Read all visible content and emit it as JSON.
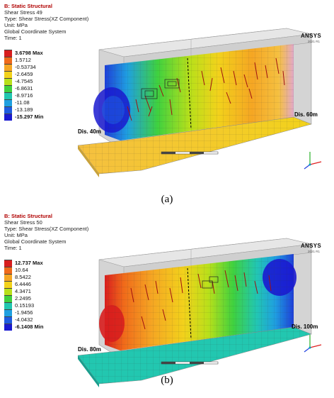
{
  "panel_a": {
    "title": "B: Static Structural",
    "result": "Shear Stress 49",
    "type": "Type: Shear Stress(XZ Component)",
    "unit": "Unit: MPa",
    "coord": "Global Coordinate System",
    "time": "Time: 1",
    "legend": [
      "3.6798 Max",
      "1.5712",
      "-0.53734",
      "-2.6459",
      "-4.7545",
      "-6.8631",
      "-8.9716",
      "-11.08",
      "-13.189",
      "-15.297 Min"
    ],
    "dis_left": "Dis. 40m",
    "dis_right": "Dis. 60m",
    "brand": "ANSYS",
    "brand_sub": "2021 R1",
    "caption": "(a)"
  },
  "panel_b": {
    "title": "B: Static Structural",
    "result": "Shear Stress 50",
    "type": "Type: Shear Stress(XZ Component)",
    "unit": "Unit: MPa",
    "coord": "Global Coordinate System",
    "time": "Time: 1",
    "legend": [
      "12.737 Max",
      "10.64",
      "8.5422",
      "6.4446",
      "4.3471",
      "2.2495",
      "0.15193",
      "-1.9456",
      "-4.0432",
      "-6.1408 Min"
    ],
    "dis_left": "Dis. 80m",
    "dis_right": "Dis. 100m",
    "brand": "ANSYS",
    "brand_sub": "2021 R1",
    "caption": "(b)"
  },
  "legend_colors": [
    "#d81e1e",
    "#f06a1a",
    "#f5a623",
    "#f2d21b",
    "#b8e01a",
    "#3fd13f",
    "#22c7b0",
    "#1fa0e0",
    "#1e5ce0",
    "#1a1ad0"
  ]
}
